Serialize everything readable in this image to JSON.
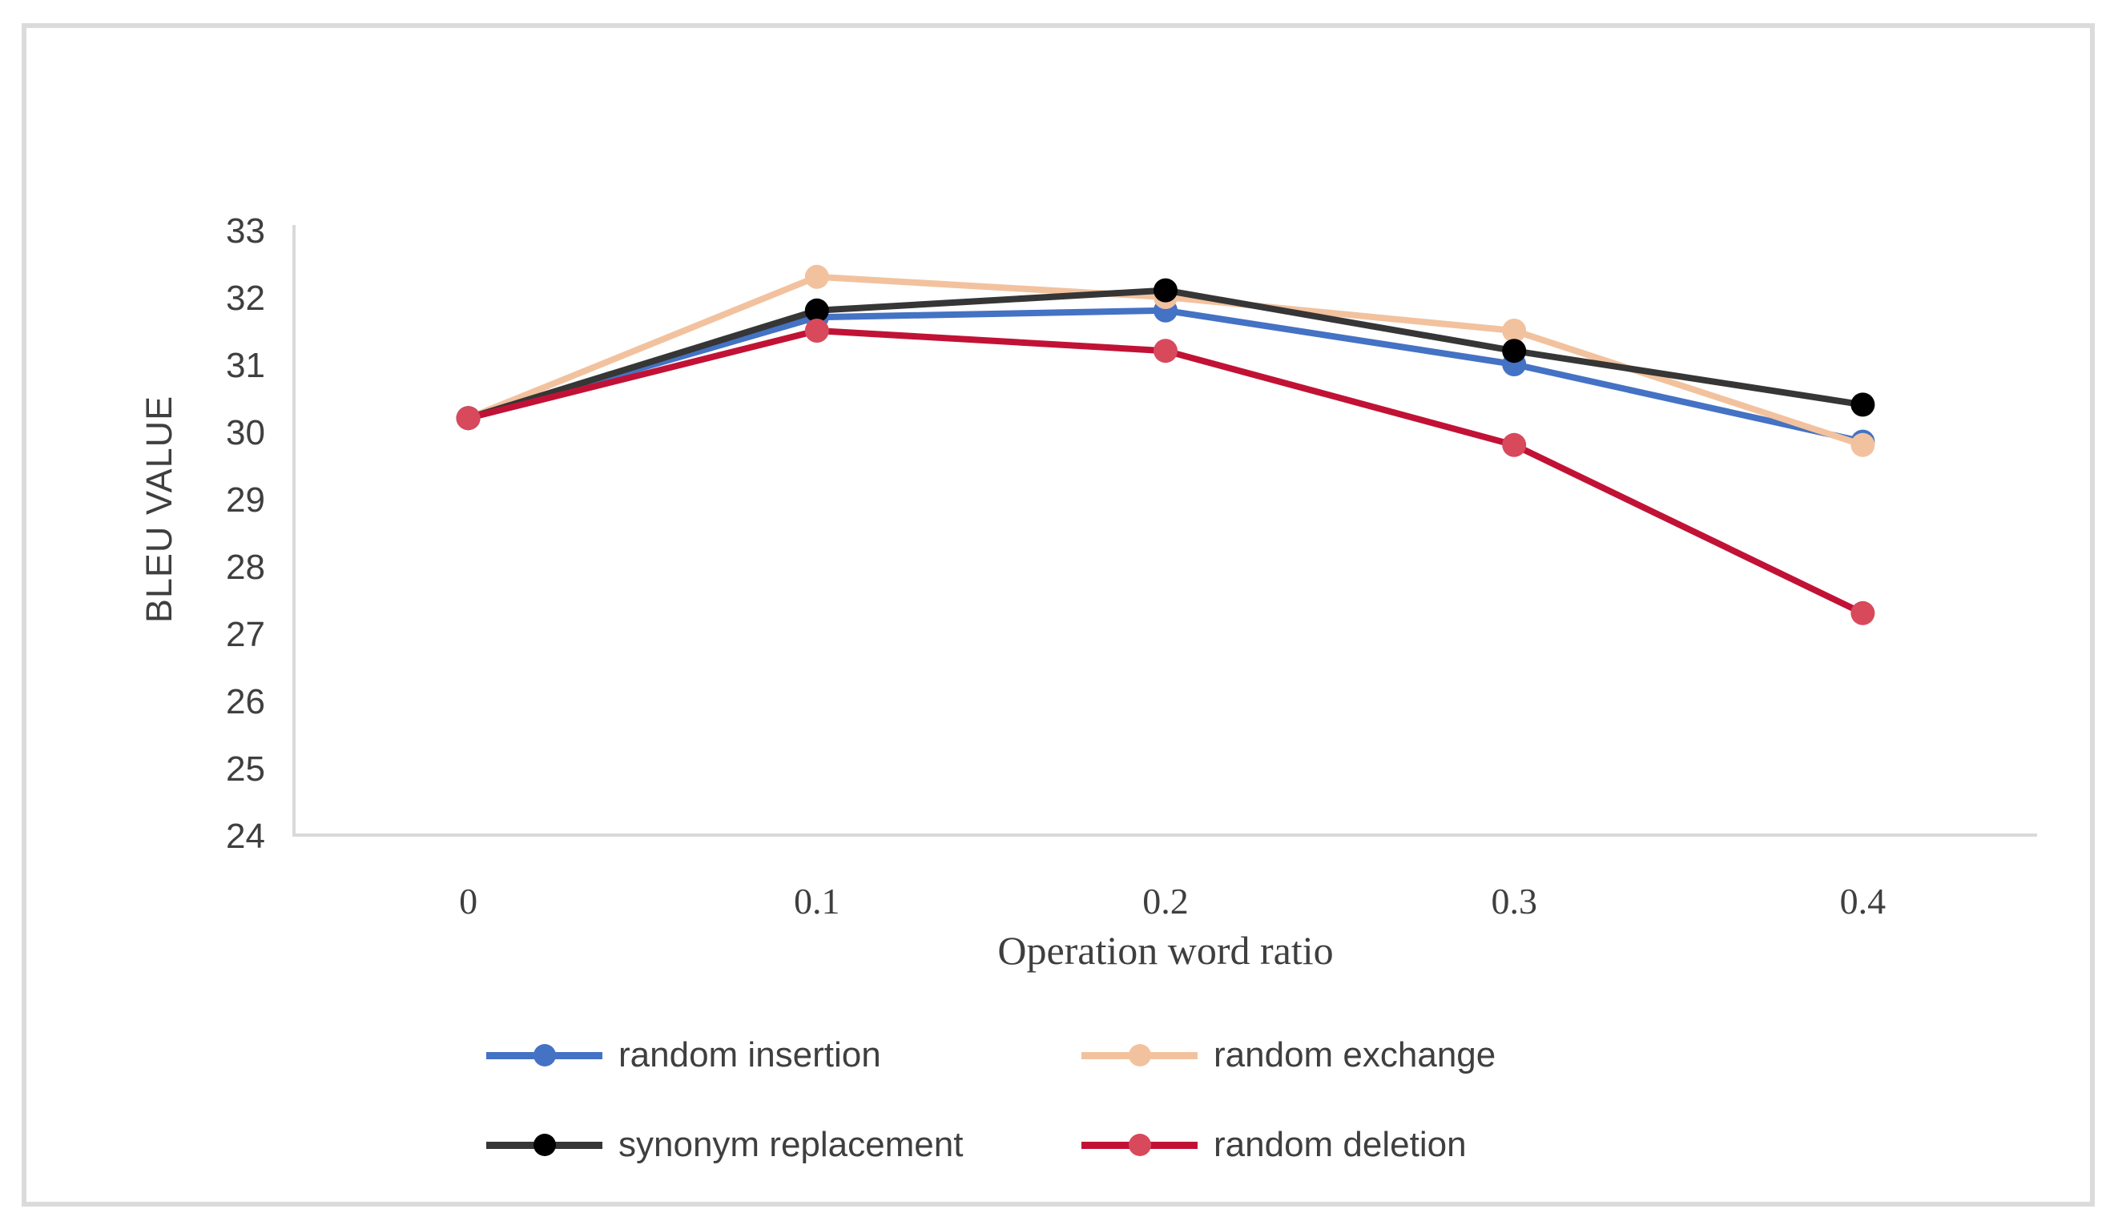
{
  "figure": {
    "background_color": "#FFFFFF",
    "border_color": "#DBDBDB"
  },
  "chart_data": {
    "type": "line",
    "title": "",
    "xlabel": "Operation word ratio",
    "ylabel": "BLEU VALUE",
    "categories": [
      "0",
      "0.1",
      "0.2",
      "0.3",
      "0.4"
    ],
    "ylim": [
      24,
      33
    ],
    "yticks": [
      24,
      25,
      26,
      27,
      28,
      29,
      30,
      31,
      32,
      33
    ],
    "grid": "off",
    "legend_position": "bottom",
    "axis_color": "#D9D9D9",
    "tick_label_color": "#3F3F3F",
    "series": [
      {
        "name": "random insertion",
        "line_color": "#4472C4",
        "marker_color": "#4472C4",
        "values": [
          30.2,
          31.7,
          31.8,
          31.0,
          29.85
        ]
      },
      {
        "name": "random exchange",
        "line_color": "#F2C29E",
        "marker_color": "#F2C29E",
        "values": [
          30.2,
          32.3,
          32.0,
          31.5,
          29.8
        ]
      },
      {
        "name": "synonym replacement",
        "line_color": "#363636",
        "marker_color": "#000000",
        "values": [
          30.2,
          31.8,
          32.1,
          31.2,
          30.4
        ]
      },
      {
        "name": "random deletion",
        "line_color": "#C11236",
        "marker_color": "#D8495C",
        "values": [
          30.2,
          31.5,
          31.2,
          29.8,
          27.3
        ]
      }
    ]
  }
}
